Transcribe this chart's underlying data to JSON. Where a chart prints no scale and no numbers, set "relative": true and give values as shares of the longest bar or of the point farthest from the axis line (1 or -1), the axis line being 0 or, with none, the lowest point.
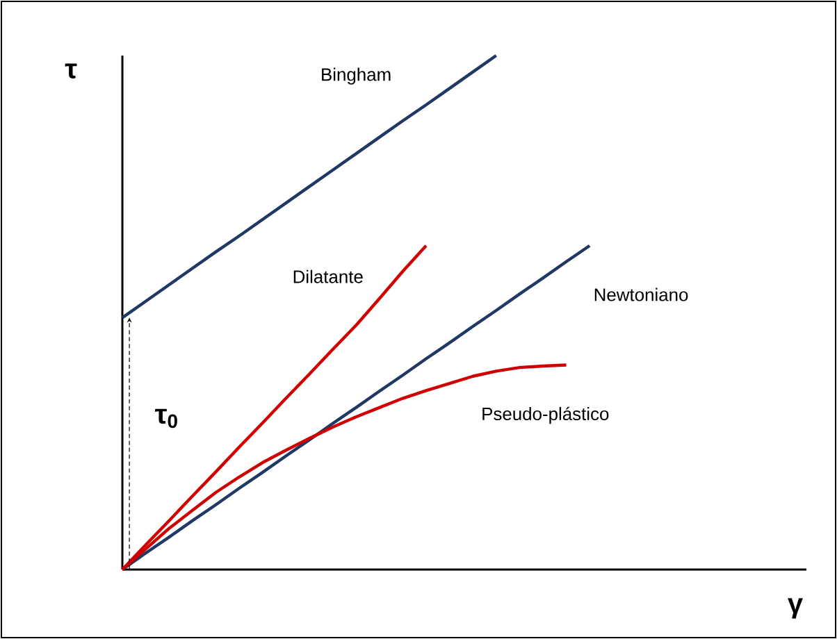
{
  "chart_data": {
    "type": "line",
    "relative": true,
    "ylabel": "τ",
    "annotations": [
      "τ$_{0}$",
      "γ"
    ],
    "categories": [
      null,
      null,
      null,
      null,
      null,
      null,
      null,
      null,
      null,
      null,
      null,
      null,
      null,
      null,
      null,
      null,
      null,
      null,
      null,
      null,
      null
    ],
    "series": [
      {
        "name": "Bingham",
        "color": "#1f3864",
        "values": [
          0.49,
          0.522,
          0.554,
          0.586,
          0.618,
          0.649,
          0.681,
          0.713,
          0.745,
          0.777,
          0.809,
          0.841,
          0.873,
          0.904,
          0.936,
          0.968,
          1.0,
          null,
          null,
          null,
          null
        ]
      },
      {
        "name": "Dilatante",
        "color": "#d00000",
        "values": [
          0,
          0.048,
          0.095,
          0.143,
          0.19,
          0.238,
          0.285,
          0.333,
          0.38,
          0.428,
          0.475,
          0.527,
          0.58,
          0.63,
          null,
          null,
          null,
          null,
          null,
          null,
          null
        ]
      },
      {
        "name": "Newtoniano",
        "color": "#1f3864",
        "values": [
          0,
          0.032,
          0.063,
          0.095,
          0.126,
          0.158,
          0.189,
          0.221,
          0.252,
          0.284,
          0.315,
          0.347,
          0.378,
          0.41,
          0.441,
          0.473,
          0.504,
          0.536,
          0.567,
          0.599,
          0.63
        ]
      },
      {
        "name": "Pseudo-plástico",
        "color": "#d00000",
        "values": [
          0,
          0.04,
          0.08,
          0.115,
          0.15,
          0.18,
          0.208,
          0.232,
          0.255,
          0.277,
          0.297,
          0.315,
          0.333,
          0.348,
          0.362,
          0.376,
          0.386,
          0.393,
          0.396,
          0.398,
          null
        ]
      }
    ],
    "marker": "none",
    "line_style": "solid"
  }
}
